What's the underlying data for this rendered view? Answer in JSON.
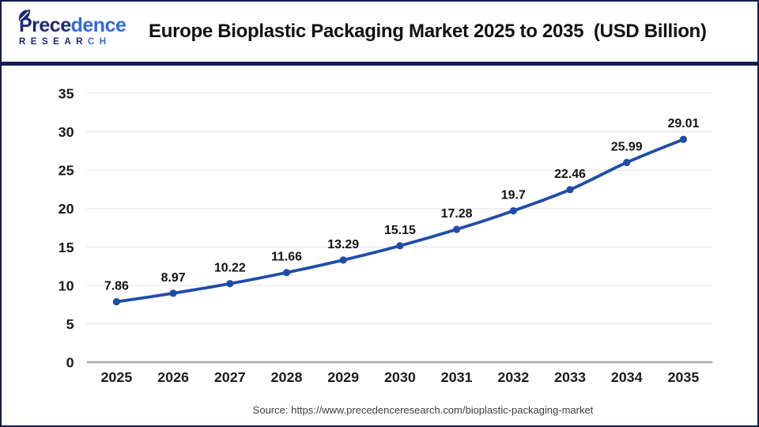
{
  "header": {
    "logo": {
      "name_prefix": "Prece",
      "name_suffix": "dence",
      "sub_prefix": "RESEAR",
      "sub_suffix": "CH"
    },
    "title": "Europe Bioplastic Packaging Market 2025 to 2035  (USD Billion)"
  },
  "chart_data": {
    "type": "line",
    "title": "Europe Bioplastic Packaging Market 2025 to 2035 (USD Billion)",
    "categories": [
      "2025",
      "2026",
      "2027",
      "2028",
      "2029",
      "2030",
      "2031",
      "2032",
      "2033",
      "2034",
      "2035"
    ],
    "values": [
      7.86,
      8.97,
      10.22,
      11.66,
      13.29,
      15.15,
      17.28,
      19.7,
      22.46,
      25.99,
      29.01
    ],
    "xlabel": "",
    "ylabel": "",
    "ylim": [
      0,
      35
    ],
    "ytick_step": 5,
    "grid": true,
    "legend": false,
    "line_color": "#1F4CA8",
    "marker": "circle",
    "data_labels": true
  },
  "footer": {
    "source": "Source: https://www.precedenceresearch.com/bioplastic-packaging-market"
  },
  "colors": {
    "accent_navy": "#161C54",
    "line_blue": "#1F4CA8",
    "grid_line": "#E7E7E7",
    "axis_line": "#ADADAD",
    "tick_text": "#1A1A1A",
    "source_text": "#3D3D3D",
    "logo_navy": "#1C2A6E",
    "logo_blue": "#2F6BD9"
  }
}
